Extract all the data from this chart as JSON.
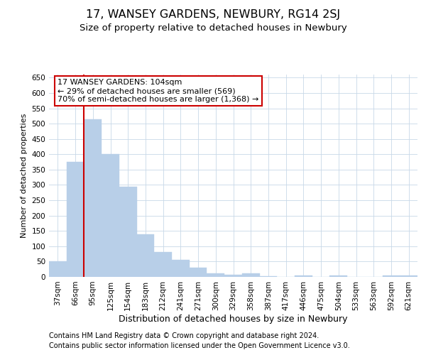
{
  "title": "17, WANSEY GARDENS, NEWBURY, RG14 2SJ",
  "subtitle": "Size of property relative to detached houses in Newbury",
  "xlabel": "Distribution of detached houses by size in Newbury",
  "ylabel": "Number of detached properties",
  "categories": [
    "37sqm",
    "66sqm",
    "95sqm",
    "125sqm",
    "154sqm",
    "183sqm",
    "212sqm",
    "241sqm",
    "271sqm",
    "300sqm",
    "329sqm",
    "358sqm",
    "387sqm",
    "417sqm",
    "446sqm",
    "475sqm",
    "504sqm",
    "533sqm",
    "563sqm",
    "592sqm",
    "621sqm"
  ],
  "values": [
    50,
    375,
    513,
    400,
    293,
    140,
    80,
    55,
    30,
    11,
    8,
    11,
    3,
    0,
    5,
    0,
    5,
    0,
    0,
    5,
    5
  ],
  "bar_color": "#b8cfe8",
  "bar_edgecolor": "#b8cfe8",
  "vline_color": "#cc0000",
  "vline_linewidth": 1.5,
  "vline_index": 2,
  "annotation_line1": "17 WANSEY GARDENS: 104sqm",
  "annotation_line2": "← 29% of detached houses are smaller (569)",
  "annotation_line3": "70% of semi-detached houses are larger (1,368) →",
  "annotation_box_edgecolor": "#cc0000",
  "annotation_box_facecolor": "#ffffff",
  "ylim": [
    0,
    660
  ],
  "yticks": [
    0,
    50,
    100,
    150,
    200,
    250,
    300,
    350,
    400,
    450,
    500,
    550,
    600,
    650
  ],
  "footer_line1": "Contains HM Land Registry data © Crown copyright and database right 2024.",
  "footer_line2": "Contains public sector information licensed under the Open Government Licence v3.0.",
  "background_color": "#ffffff",
  "grid_color": "#c8d8e8",
  "title_fontsize": 11.5,
  "subtitle_fontsize": 9.5,
  "xlabel_fontsize": 9,
  "ylabel_fontsize": 8,
  "tick_fontsize": 7.5,
  "annotation_fontsize": 8,
  "footer_fontsize": 7
}
